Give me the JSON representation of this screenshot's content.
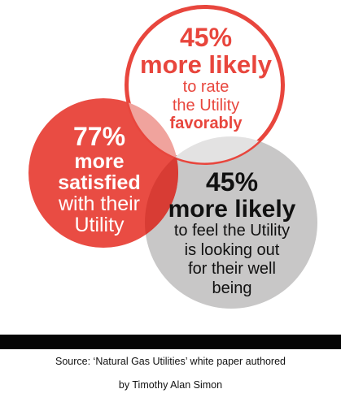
{
  "top_circle": {
    "percent": "45%",
    "headline": "more likely",
    "line1": "to rate",
    "line2": "the Utility",
    "line3": "favorably"
  },
  "left_circle": {
    "percent": "77%",
    "line1": "more",
    "line2": "satisfied",
    "line3": "with their",
    "line4": "Utility"
  },
  "right_circle": {
    "percent": "45%",
    "headline": "more likely",
    "line1": "to feel the Utility",
    "line2": "is looking out",
    "line3": "for their well",
    "line4": "being"
  },
  "source": {
    "line1": "Source: ‘Natural Gas Utilities’ white paper authored",
    "line2": "by Timothy Alan Simon"
  },
  "colors": {
    "accent_red": "#e8463d",
    "gray_circle": "#c8c7c7",
    "bar": "#050505"
  }
}
